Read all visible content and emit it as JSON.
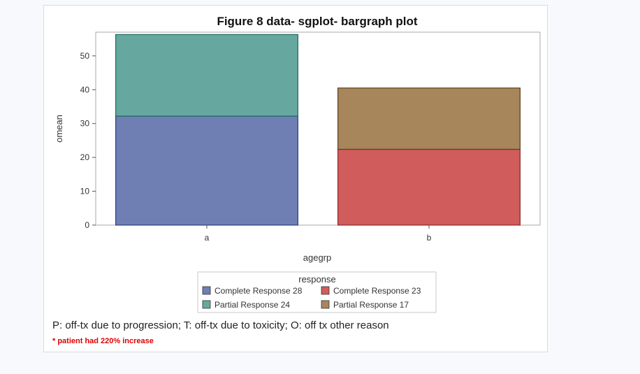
{
  "chart_data": {
    "type": "bar",
    "stacked": true,
    "title": "Figure 8 data-  sgplot- bargraph plot",
    "xlabel": "agegrp",
    "ylabel": "omean",
    "categories": [
      "a",
      "b"
    ],
    "ylim": [
      0,
      57
    ],
    "yticks": [
      0,
      10,
      20,
      30,
      40,
      50
    ],
    "grid": false,
    "series": [
      {
        "name": "Complete Response 28",
        "category": "a",
        "base": 0,
        "value": 32.2,
        "color": "#6f7fb4",
        "stroke": "#2f3f7f"
      },
      {
        "name": "Partial Response  24",
        "category": "a",
        "base": 32.2,
        "value": 24.1,
        "color": "#66a8a0",
        "stroke": "#1f6b5f"
      },
      {
        "name": "Complete Response 23",
        "category": "b",
        "base": 0,
        "value": 22.4,
        "color": "#d05d5b",
        "stroke": "#8a2a2a"
      },
      {
        "name": "Partial Response  17",
        "category": "b",
        "base": 22.4,
        "value": 18.1,
        "color": "#a8865c",
        "stroke": "#5e3f1c"
      }
    ],
    "legend": {
      "title": "response",
      "placement": "bottom",
      "entries": [
        {
          "label": "Complete Response 28",
          "color": "#6f7fb4"
        },
        {
          "label": "Complete Response 23",
          "color": "#d05d5b"
        },
        {
          "label": "Partial Response  24",
          "color": "#66a8a0"
        },
        {
          "label": "Partial Response  17",
          "color": "#a8865c"
        }
      ]
    }
  },
  "footnotes": {
    "line1": "P: off-tx due to progression; T: off-tx due to toxicity; O: off tx other reason",
    "line2": "* patient had 220% increase"
  }
}
